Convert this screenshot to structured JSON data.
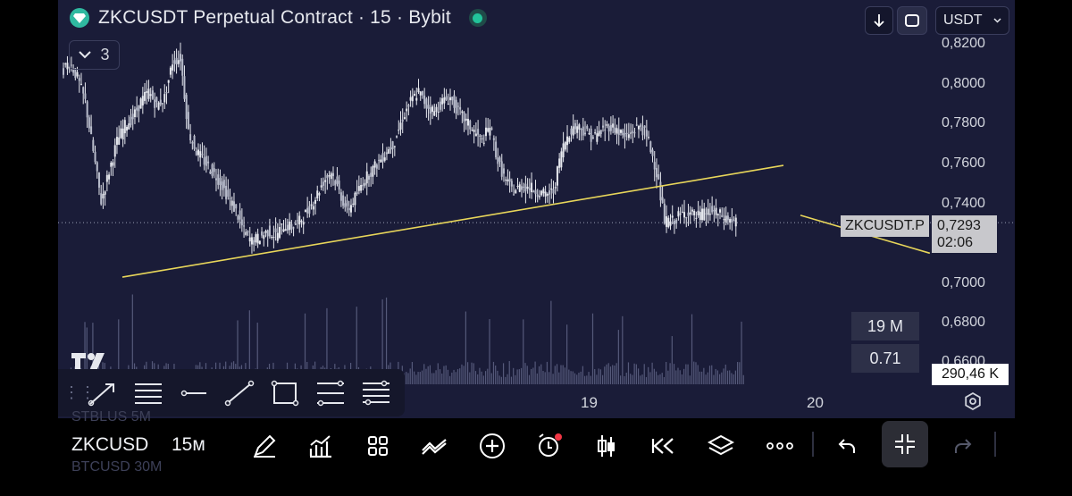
{
  "header": {
    "title": "ZKCUSDT Perpetual Contract · 15 · Bybit",
    "currency": "USDT",
    "collapse_count": "3"
  },
  "price_scale": {
    "labels": [
      "0,8200",
      "0,8000",
      "0,7800",
      "0,7600",
      "0,7400",
      "0,7000",
      "0,6800",
      "0,6600"
    ],
    "symbol_tag": "ZKCUSDT.P",
    "last_price": "0,7293",
    "countdown": "02:06"
  },
  "volume_panel": {
    "label_volume": "19 M",
    "label_ratio": "0.71",
    "last_volume": "290,46 K"
  },
  "time_axis": {
    "labels": [
      "19",
      "20"
    ]
  },
  "bottom_bar": {
    "symbol": "ZKCUSD",
    "interval": "15м",
    "ghost_top": "STBLUS    5M",
    "ghost_bottom": "BTCUSD    30M"
  },
  "colors": {
    "chart_bg": "#1a1c38",
    "candle": "#e6e8ee",
    "trendline": "#e8d65a",
    "accent": "#22c39a"
  },
  "chart_data": {
    "type": "candlestick",
    "x_ticks": [
      "19",
      "20"
    ],
    "y_ticks": [
      0.82,
      0.8,
      0.78,
      0.76,
      0.74,
      0.7,
      0.68,
      0.66
    ],
    "ylim": [
      0.655,
      0.823
    ],
    "last_price": 0.7293,
    "close_series": [
      0.805,
      0.81,
      0.802,
      0.79,
      0.765,
      0.74,
      0.755,
      0.77,
      0.778,
      0.782,
      0.79,
      0.795,
      0.788,
      0.792,
      0.81,
      0.812,
      0.775,
      0.765,
      0.76,
      0.755,
      0.75,
      0.742,
      0.735,
      0.725,
      0.72,
      0.722,
      0.725,
      0.723,
      0.728,
      0.727,
      0.73,
      0.735,
      0.742,
      0.75,
      0.755,
      0.745,
      0.735,
      0.742,
      0.75,
      0.755,
      0.76,
      0.765,
      0.77,
      0.782,
      0.79,
      0.795,
      0.788,
      0.785,
      0.79,
      0.792,
      0.785,
      0.78,
      0.775,
      0.77,
      0.778,
      0.76,
      0.75,
      0.745,
      0.748,
      0.747,
      0.745,
      0.743,
      0.745,
      0.765,
      0.775,
      0.778,
      0.775,
      0.772,
      0.775,
      0.778,
      0.776,
      0.772,
      0.775,
      0.778,
      0.77,
      0.755,
      0.73,
      0.73,
      0.733,
      0.735,
      0.732,
      0.734,
      0.735,
      0.733,
      0.731,
      0.7293
    ],
    "trendlines": [
      {
        "from": [
          0,
          0.702
        ],
        "to": [
          52,
          0.758
        ]
      },
      {
        "from": [
          44,
          0.714
        ],
        "to": [
          56,
          0.733
        ]
      }
    ]
  }
}
